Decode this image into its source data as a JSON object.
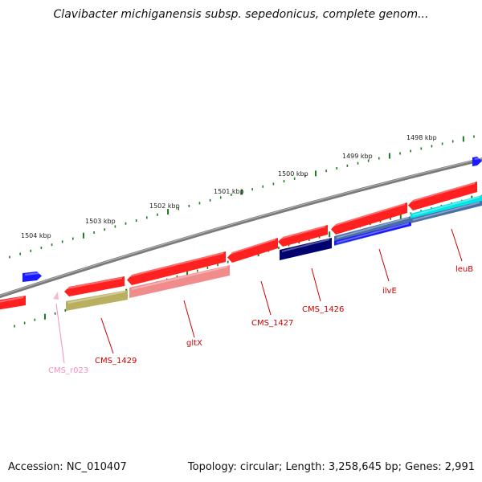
{
  "title": "Clavibacter michiganensis subsp. sepedonicus, complete genom...",
  "footer": {
    "accession": "Accession: NC_010407",
    "stats": "Topology: circular; Length: 3,258,645 bp; Genes: 2,991"
  },
  "kbp_labels": [
    "1504 kbp",
    "1503 kbp",
    "1502 kbp",
    "1501 kbp",
    "1500 kbp",
    "1499 kbp",
    "1498 kbp"
  ],
  "gene_labels": [
    {
      "text": "CMS_r023",
      "color": "#f48fc0"
    },
    {
      "text": "CMS_1429",
      "color": "#cc0000"
    },
    {
      "text": "gltX",
      "color": "#cc0000"
    },
    {
      "text": "CMS_1427",
      "color": "#cc0000"
    },
    {
      "text": "CMS_1426",
      "color": "#cc0000"
    },
    {
      "text": "ilvE",
      "color": "#cc0000"
    },
    {
      "text": "leuB",
      "color": "#cc0000"
    }
  ],
  "colors": {
    "gene": "#ff2020",
    "cds_olive": "#b8b060",
    "cds_pink": "#f08c8c",
    "cds_navy": "#00006e",
    "cds_steel": "#4a6ea8",
    "cds_cyan": "#00e6e6",
    "other_gene": "#1a1aff",
    "backbone": "#7a7a7a",
    "tick": "#1e7a1e"
  }
}
